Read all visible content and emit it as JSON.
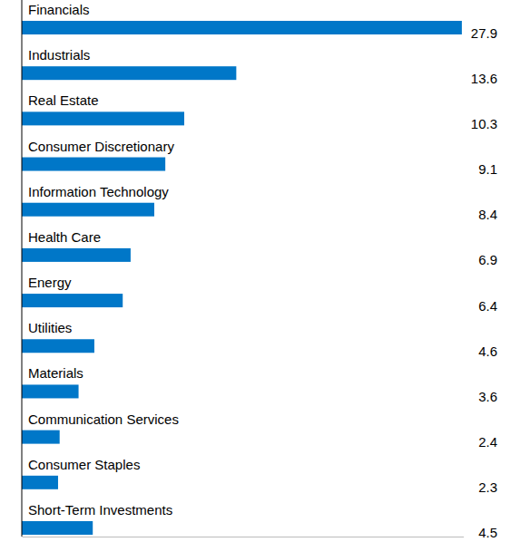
{
  "chart_data": {
    "type": "bar",
    "orientation": "horizontal",
    "categories": [
      "Financials",
      "Industrials",
      "Real Estate",
      "Consumer Discretionary",
      "Information Technology",
      "Health Care",
      "Energy",
      "Utilities",
      "Materials",
      "Communication Services",
      "Consumer Staples",
      "Short-Term Investments"
    ],
    "values": [
      27.9,
      13.6,
      10.3,
      9.1,
      8.4,
      6.9,
      6.4,
      4.6,
      3.6,
      2.4,
      2.3,
      4.5
    ],
    "color": "#0077c8",
    "xlim": [
      0,
      28
    ],
    "tick_labels": false,
    "data_labels": true,
    "grid": false
  }
}
